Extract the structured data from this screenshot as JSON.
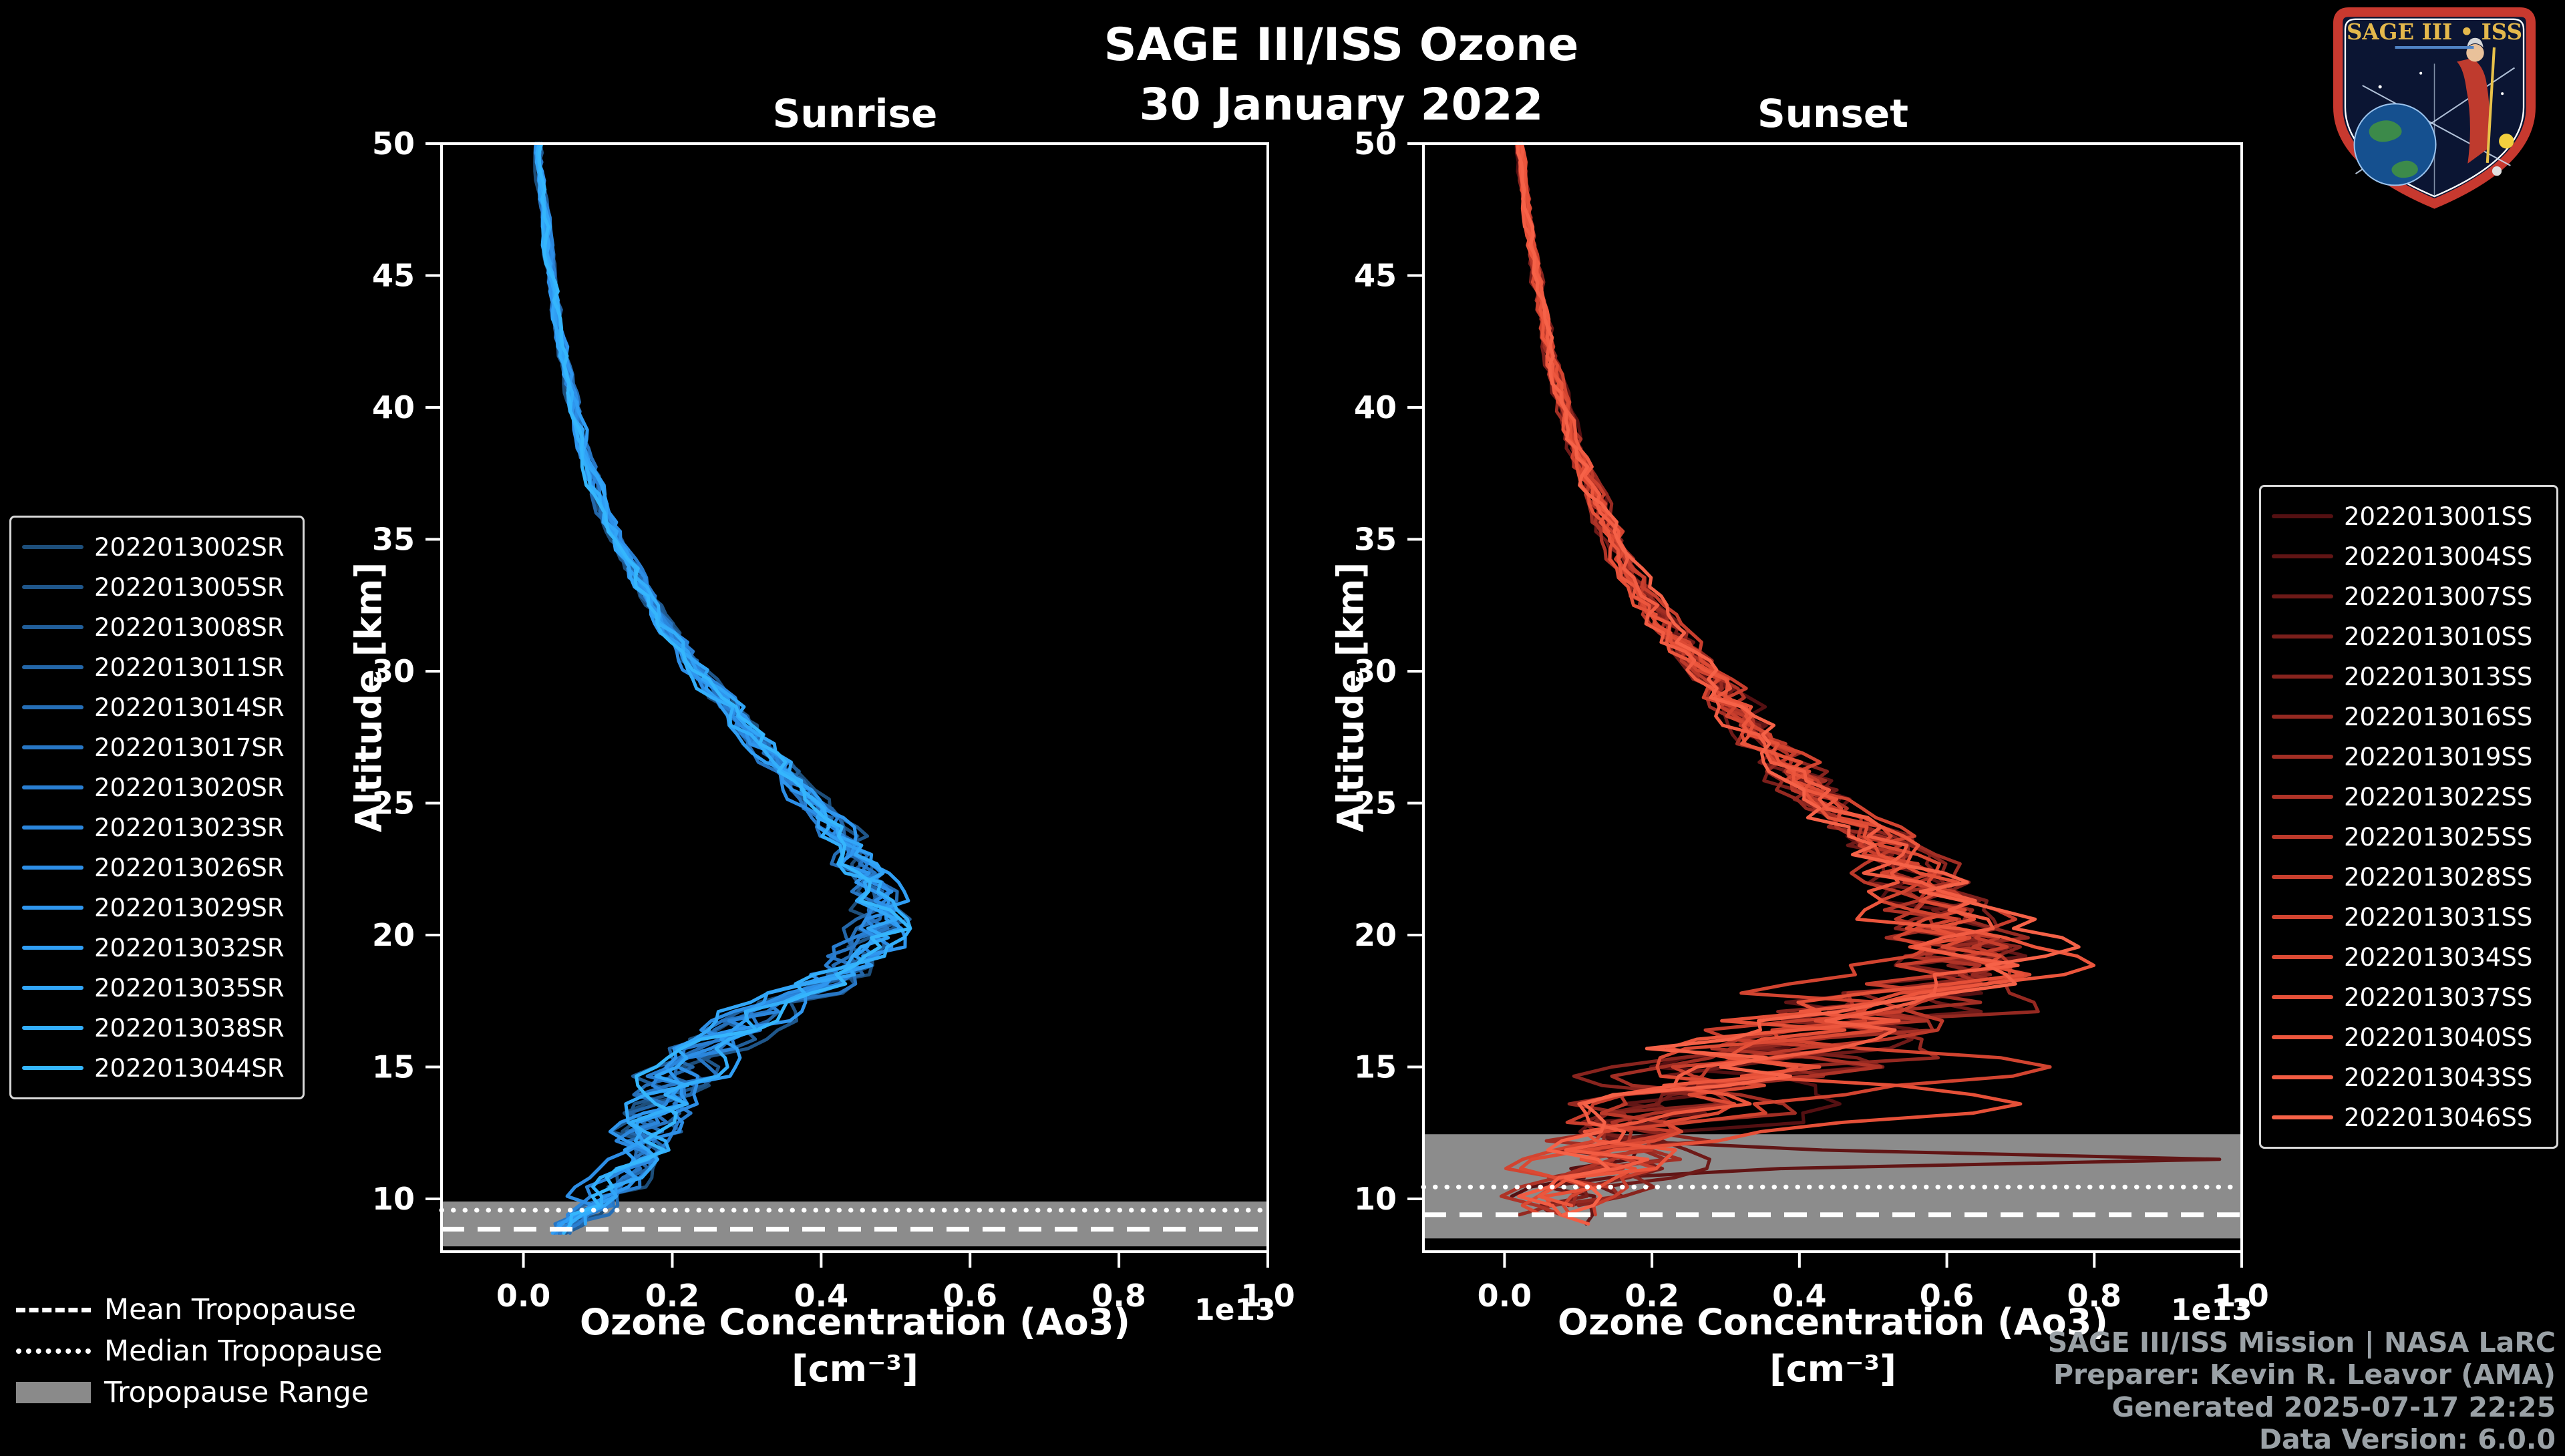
{
  "header": {
    "title": "SAGE III/ISS Ozone",
    "subtitle": "30 January 2022"
  },
  "logo": {
    "title": "SAGE III • ISS",
    "border_color": "#c8392f",
    "field_color": "#0b1533",
    "text_color": "#e4b84c"
  },
  "tropopause_legend": {
    "items": [
      {
        "label": "Mean Tropopause",
        "style": "dashed"
      },
      {
        "label": "Median Tropopause",
        "style": "dotted"
      },
      {
        "label": "Tropopause Range",
        "style": "band",
        "color": "#8a8a8a"
      }
    ]
  },
  "footer": {
    "lines": [
      "SAGE III/ISS Mission | NASA LaRC",
      "Preparer: Kevin R. Leavor (AMA)",
      "Generated 2025-07-17 22:25",
      "Data Version: 6.0.0"
    ]
  },
  "chart_data": [
    {
      "type": "line",
      "title": "Sunrise",
      "xlabel": "Ozone Concentration (Ao3)",
      "xlabel_units": "[cm⁻³]",
      "x_scale_label": "1e13",
      "ylabel": "Altitude [km]",
      "xlim": [
        -0.11,
        1.0
      ],
      "ylim": [
        8.0,
        50.0
      ],
      "xticks": [
        0.0,
        0.2,
        0.4,
        0.6,
        0.8,
        1.0
      ],
      "yticks": [
        10,
        15,
        20,
        25,
        30,
        35,
        40,
        45,
        50
      ],
      "legend_position": "left",
      "grid": false,
      "series": [
        {
          "name": "2022013002SR",
          "color": "#1d4e7a"
        },
        {
          "name": "2022013005SR",
          "color": "#1f568a"
        },
        {
          "name": "2022013008SR",
          "color": "#215e99"
        },
        {
          "name": "2022013011SR",
          "color": "#2366a8"
        },
        {
          "name": "2022013014SR",
          "color": "#256eb6"
        },
        {
          "name": "2022013017SR",
          "color": "#2776c4"
        },
        {
          "name": "2022013020SR",
          "color": "#297ed1"
        },
        {
          "name": "2022013023SR",
          "color": "#2b86dc"
        },
        {
          "name": "2022013026SR",
          "color": "#2d8ee6"
        },
        {
          "name": "2022013029SR",
          "color": "#2f96ee"
        },
        {
          "name": "2022013032SR",
          "color": "#309ef4"
        },
        {
          "name": "2022013035SR",
          "color": "#32a6f8"
        },
        {
          "name": "2022013038SR",
          "color": "#33aefb"
        },
        {
          "name": "2022013044SR",
          "color": "#35b6fd"
        }
      ],
      "base_profile": {
        "altitude_km": [
          50,
          48,
          46,
          44,
          42,
          40,
          38,
          36,
          34,
          32,
          30,
          28,
          26,
          24,
          23,
          22,
          21,
          20,
          19,
          18,
          17,
          16,
          15,
          14,
          13,
          12,
          11,
          10,
          9.5,
          9,
          8.5
        ],
        "value_1e13": [
          0.02,
          0.026,
          0.033,
          0.042,
          0.054,
          0.068,
          0.086,
          0.11,
          0.143,
          0.185,
          0.235,
          0.295,
          0.36,
          0.42,
          0.445,
          0.465,
          0.478,
          0.472,
          0.445,
          0.39,
          0.32,
          0.262,
          0.22,
          0.19,
          0.172,
          0.16,
          0.138,
          0.105,
          0.085,
          0.065,
          0.05
        ]
      },
      "spread_profile": {
        "altitude_km": [
          50,
          40,
          32,
          28,
          25,
          22,
          20,
          18,
          16,
          14,
          12,
          10,
          8.5
        ],
        "value_1e13": [
          0.004,
          0.006,
          0.01,
          0.015,
          0.02,
          0.028,
          0.032,
          0.04,
          0.045,
          0.042,
          0.038,
          0.03,
          0.022
        ]
      },
      "value_clamp_1e13": [
        -0.02,
        0.56
      ],
      "profile_bottom_km": {
        "min": 8.5,
        "jitter": 0.4
      },
      "excursions": [
        {
          "series_index": 12,
          "altitude_km": 20.3,
          "value_1e13": 0.52,
          "width_km": 1.2
        }
      ],
      "tropopause": {
        "mean_km": 8.85,
        "median_km": 9.57,
        "range_km": [
          8.2,
          9.9
        ]
      }
    },
    {
      "type": "line",
      "title": "Sunset",
      "xlabel": "Ozone Concentration (Ao3)",
      "xlabel_units": "[cm⁻³]",
      "x_scale_label": "1e13",
      "ylabel": "Altitude [km]",
      "xlim": [
        -0.11,
        1.0
      ],
      "ylim": [
        8.0,
        50.0
      ],
      "xticks": [
        0.0,
        0.2,
        0.4,
        0.6,
        0.8,
        1.0
      ],
      "yticks": [
        10,
        15,
        20,
        25,
        30,
        35,
        40,
        45,
        50
      ],
      "legend_position": "right",
      "grid": false,
      "series": [
        {
          "name": "2022013001SS",
          "color": "#541012"
        },
        {
          "name": "2022013004SS",
          "color": "#611515"
        },
        {
          "name": "2022013007SS",
          "color": "#6e1a18"
        },
        {
          "name": "2022013010SS",
          "color": "#7b1f1b"
        },
        {
          "name": "2022013013SS",
          "color": "#88241e"
        },
        {
          "name": "2022013016SS",
          "color": "#952921"
        },
        {
          "name": "2022013019SS",
          "color": "#a22e24"
        },
        {
          "name": "2022013022SS",
          "color": "#af3327"
        },
        {
          "name": "2022013025SS",
          "color": "#bc392a"
        },
        {
          "name": "2022013028SS",
          "color": "#c83e2d"
        },
        {
          "name": "2022013031SS",
          "color": "#d24430"
        },
        {
          "name": "2022013034SS",
          "color": "#dc4a34"
        },
        {
          "name": "2022013037SS",
          "color": "#e55038"
        },
        {
          "name": "2022013040SS",
          "color": "#ec563d"
        },
        {
          "name": "2022013043SS",
          "color": "#f25c43"
        },
        {
          "name": "2022013046SS",
          "color": "#f66248"
        }
      ],
      "base_profile": {
        "altitude_km": [
          50,
          48,
          46,
          44,
          42,
          40,
          38,
          36,
          34,
          32,
          30,
          28,
          26,
          24,
          23,
          22,
          21,
          20,
          19,
          18,
          17,
          16,
          15,
          14,
          13,
          12,
          11,
          10,
          9.5
        ],
        "value_1e13": [
          0.02,
          0.028,
          0.037,
          0.048,
          0.062,
          0.08,
          0.102,
          0.13,
          0.165,
          0.21,
          0.268,
          0.33,
          0.4,
          0.48,
          0.52,
          0.555,
          0.58,
          0.6,
          0.598,
          0.55,
          0.47,
          0.4,
          0.34,
          0.28,
          0.22,
          0.17,
          0.13,
          0.09,
          0.07
        ]
      },
      "spread_profile": {
        "altitude_km": [
          50,
          40,
          34,
          30,
          27,
          24,
          22,
          20,
          19,
          18,
          17,
          16,
          15,
          14,
          13,
          12,
          11,
          10,
          9.5
        ],
        "value_1e13": [
          0.004,
          0.008,
          0.014,
          0.022,
          0.032,
          0.045,
          0.06,
          0.085,
          0.105,
          0.125,
          0.14,
          0.15,
          0.148,
          0.14,
          0.125,
          0.105,
          0.085,
          0.065,
          0.055
        ]
      },
      "value_clamp_1e13": [
        -0.04,
        0.98
      ],
      "profile_bottom_km": {
        "min": 8.9,
        "jitter": 1.3
      },
      "excursions": [
        {
          "series_index": 1,
          "altitude_km": 11.5,
          "value_1e13": 0.97,
          "width_km": 0.3
        },
        {
          "series_index": 13,
          "altitude_km": 18.9,
          "value_1e13": 0.8,
          "width_km": 1.0
        },
        {
          "series_index": 15,
          "altitude_km": 19.6,
          "value_1e13": 0.78,
          "width_km": 0.8
        },
        {
          "series_index": 10,
          "altitude_km": 15.0,
          "value_1e13": 0.74,
          "width_km": 0.9
        },
        {
          "series_index": 12,
          "altitude_km": 13.6,
          "value_1e13": 0.7,
          "width_km": 0.8
        }
      ],
      "tropopause": {
        "mean_km": 9.4,
        "median_km": 10.45,
        "range_km": [
          8.5,
          12.45
        ]
      }
    }
  ],
  "colors": {
    "background": "#000000",
    "axis": "#ffffff",
    "tropopause_band": "#8c8c8c",
    "footer_text": "#9aa1a6"
  }
}
